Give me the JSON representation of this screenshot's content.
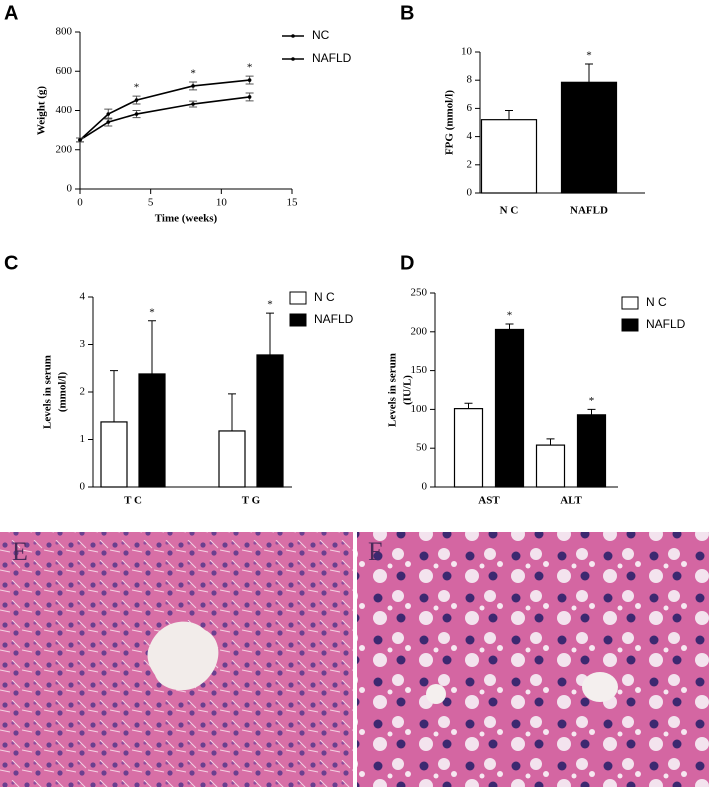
{
  "chart_data": [
    {
      "type": "line",
      "label": "A",
      "xlabel": "Time (weeks)",
      "ylabel": [
        "Weight (g)"
      ],
      "x": [
        0,
        2,
        4,
        8,
        12
      ],
      "series": [
        {
          "name": "NC",
          "color": "#000000",
          "values": [
            250,
            341,
            382,
            433,
            469
          ],
          "errors": [
            10,
            20,
            18,
            15,
            20
          ]
        },
        {
          "name": "NAFLD",
          "color": "#000000",
          "values": [
            250,
            382,
            453,
            525,
            555
          ],
          "errors": [
            10,
            25,
            20,
            20,
            20
          ],
          "significance": [
            null,
            null,
            "*",
            "*",
            "*"
          ]
        }
      ],
      "xlim": [
        0,
        15
      ],
      "xticks": [
        0,
        5,
        10,
        15
      ],
      "ylim": [
        0,
        800
      ],
      "yticks": [
        0,
        200,
        400,
        600,
        800
      ],
      "legend": "top-right"
    },
    {
      "type": "bar",
      "label": "B",
      "ylabel": [
        "FPG (mmol/l)"
      ],
      "categories": [
        "N C",
        "NAFLD"
      ],
      "values": [
        5.2,
        7.85
      ],
      "errors": [
        0.65,
        1.3
      ],
      "colors": [
        "#ffffff",
        "#000000"
      ],
      "significance": [
        null,
        "*"
      ],
      "ylim": [
        0,
        10
      ],
      "yticks": [
        0,
        2,
        4,
        6,
        8,
        10
      ]
    },
    {
      "type": "grouped-bar",
      "label": "C",
      "ylabel": [
        "Levels in serum",
        "(mmol/l)"
      ],
      "categories": [
        "T C",
        "T G"
      ],
      "series": [
        {
          "name": "N C",
          "color": "#ffffff",
          "values": [
            1.37,
            1.18
          ],
          "errors": [
            1.08,
            0.78
          ]
        },
        {
          "name": "NAFLD",
          "color": "#000000",
          "values": [
            2.38,
            2.78
          ],
          "errors": [
            1.12,
            0.88
          ],
          "significance": [
            "*",
            "*"
          ]
        }
      ],
      "ylim": [
        0,
        4
      ],
      "yticks": [
        0,
        1,
        2,
        3,
        4
      ],
      "legend": "top-right"
    },
    {
      "type": "grouped-bar",
      "label": "D",
      "ylabel": [
        "Levels in serum",
        "(IU/L)"
      ],
      "categories": [
        "AST",
        "ALT"
      ],
      "series": [
        {
          "name": "N C",
          "color": "#ffffff",
          "values": [
            101,
            54
          ],
          "errors": [
            7,
            8
          ]
        },
        {
          "name": "NAFLD",
          "color": "#000000",
          "values": [
            203,
            93
          ],
          "errors": [
            7,
            7
          ],
          "significance": [
            "*",
            "*"
          ]
        }
      ],
      "ylim": [
        0,
        250
      ],
      "yticks": [
        0,
        50,
        100,
        150,
        200,
        250
      ],
      "legend": "top-right"
    }
  ],
  "images": [
    {
      "label": "E"
    },
    {
      "label": "F"
    }
  ]
}
